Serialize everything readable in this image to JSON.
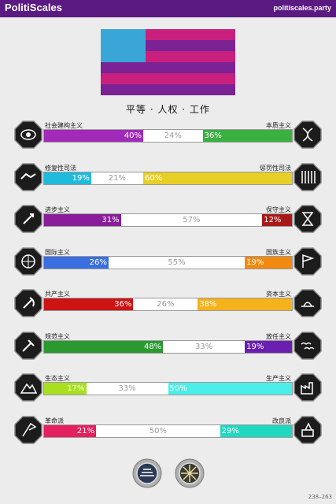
{
  "header": {
    "brand": "PolitiScales",
    "site": "politiscales.party"
  },
  "flag": {
    "colors": [
      "#3aa6d8",
      "#c9207e",
      "#7b2294"
    ]
  },
  "slogan": "平等 · 人权 · 工作",
  "axes": [
    {
      "left_label": "社会建构主义",
      "right_label": "本质主义",
      "left_pct": 40,
      "mid_pct": 24,
      "right_pct": 36,
      "left_text": "40%",
      "mid_text": "24%",
      "right_text": "36%",
      "left_color": "#a22ab8",
      "right_color": "#3ab040",
      "left_icon": "eye-icon",
      "right_icon": "dna-icon"
    },
    {
      "left_label": "修复性司法",
      "right_label": "惩罚性司法",
      "left_pct": 19,
      "mid_pct": 21,
      "right_pct": 60,
      "left_text": "19%",
      "mid_text": "21%",
      "right_text": "60%",
      "left_color": "#1fbbdd",
      "right_color": "#e8cf25",
      "left_icon": "handshake-icon",
      "right_icon": "prison-bars-icon"
    },
    {
      "left_label": "进步主义",
      "right_label": "保守主义",
      "left_pct": 31,
      "mid_pct": 57,
      "right_pct": 12,
      "left_text": "31%",
      "mid_text": "57%",
      "right_text": "12%",
      "left_color": "#8a1d9a",
      "right_color": "#a81a1a",
      "left_icon": "rocket-icon",
      "right_icon": "hourglass-icon"
    },
    {
      "left_label": "国际主义",
      "right_label": "国族主义",
      "left_pct": 26,
      "mid_pct": 55,
      "right_pct": 19,
      "left_text": "26%",
      "mid_text": "55%",
      "right_text": "19%",
      "left_color": "#3a6fe0",
      "right_color": "#f28a10",
      "left_icon": "globe-icon",
      "right_icon": "flag-icon"
    },
    {
      "left_label": "共产主义",
      "right_label": "资本主义",
      "left_pct": 36,
      "mid_pct": 26,
      "right_pct": 38,
      "left_text": "36%",
      "mid_text": "26%",
      "right_text": "38%",
      "left_color": "#cc1414",
      "right_color": "#f5b21a",
      "left_icon": "hammer-sickle-icon",
      "right_icon": "sunrise-icon"
    },
    {
      "left_label": "规范主义",
      "right_label": "放任主义",
      "left_pct": 48,
      "mid_pct": 33,
      "right_pct": 19,
      "left_text": "48%",
      "mid_text": "33%",
      "right_text": "19%",
      "left_color": "#2a9a30",
      "right_color": "#6a1fb0",
      "left_icon": "gavel-icon",
      "right_icon": "birds-icon"
    },
    {
      "left_label": "生态主义",
      "right_label": "生产主义",
      "left_pct": 17,
      "mid_pct": 33,
      "right_pct": 50,
      "left_text": "17%",
      "mid_text": "33%",
      "right_text": "50%",
      "left_color": "#a8e020",
      "right_color": "#4ceee8",
      "left_icon": "mountain-icon",
      "right_icon": "factory-icon"
    },
    {
      "left_label": "革命派",
      "right_label": "改良派",
      "left_pct": 21,
      "mid_pct": 50,
      "right_pct": 29,
      "left_text": "21%",
      "mid_text": "50%",
      "right_text": "29%",
      "left_color": "#e5205e",
      "right_color": "#20d8c0",
      "left_icon": "revolution-flag-icon",
      "right_icon": "ballot-icon"
    }
  ],
  "badges": [
    "badge-icon",
    "badge-icon"
  ],
  "footer": "238–263"
}
